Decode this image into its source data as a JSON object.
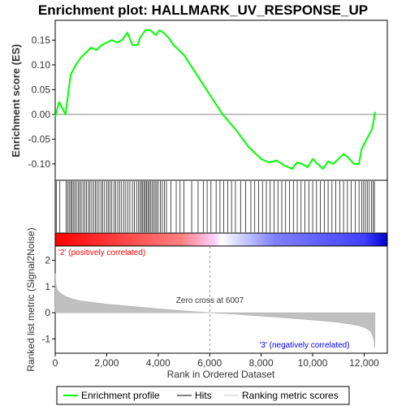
{
  "chart_data": {
    "type": "line",
    "title": "Enrichment plot: HALLMARK_UV_RESPONSE_UP",
    "es_panel": {
      "ylabel": "Enrichment score (ES)",
      "ylim": [
        -0.133,
        0.19
      ],
      "yticks": [
        0.15,
        0.1,
        0.05,
        0.0,
        -0.05,
        -0.1
      ],
      "ytick_labels": [
        "0.15",
        "0.10",
        "0.05",
        "0.00",
        "-0.05",
        "-0.10"
      ],
      "line_color": "#00ff00",
      "x": [
        0,
        150,
        400,
        600,
        800,
        1000,
        1200,
        1400,
        1600,
        1800,
        2000,
        2200,
        2400,
        2600,
        2800,
        3000,
        3200,
        3300,
        3500,
        3700,
        3900,
        4050,
        4200,
        4400,
        4600,
        4800,
        5000,
        5500,
        6000,
        6500,
        7000,
        7500,
        8000,
        8300,
        8600,
        8900,
        9200,
        9400,
        9600,
        9800,
        10000,
        10200,
        10400,
        10600,
        10800,
        11000,
        11200,
        11400,
        11600,
        11800,
        11900,
        12000,
        12100,
        12200,
        12300,
        12380,
        12420
      ],
      "y": [
        -0.005,
        0.025,
        0.0,
        0.08,
        0.1,
        0.115,
        0.125,
        0.135,
        0.13,
        0.14,
        0.145,
        0.15,
        0.145,
        0.15,
        0.165,
        0.14,
        0.14,
        0.155,
        0.17,
        0.17,
        0.16,
        0.17,
        0.165,
        0.155,
        0.14,
        0.13,
        0.12,
        0.08,
        0.04,
        0.0,
        -0.03,
        -0.065,
        -0.09,
        -0.097,
        -0.093,
        -0.103,
        -0.11,
        -0.097,
        -0.1,
        -0.107,
        -0.09,
        -0.1,
        -0.11,
        -0.095,
        -0.1,
        -0.09,
        -0.08,
        -0.088,
        -0.1,
        -0.1,
        -0.07,
        -0.06,
        -0.05,
        -0.04,
        -0.03,
        -0.01,
        0.005
      ]
    },
    "hits": [
      40,
      180,
      420,
      480,
      540,
      600,
      650,
      700,
      760,
      820,
      890,
      950,
      1010,
      1080,
      1150,
      1210,
      1290,
      1350,
      1420,
      1490,
      1560,
      1630,
      1700,
      1780,
      1850,
      1920,
      2000,
      2060,
      2130,
      2200,
      2280,
      2350,
      2430,
      2500,
      2580,
      2660,
      2740,
      2820,
      2900,
      3000,
      3080,
      3160,
      3240,
      3300,
      3350,
      3400,
      3450,
      3500,
      3550,
      3600,
      3650,
      3700,
      3760,
      3820,
      3880,
      3940,
      4000,
      4080,
      4160,
      4240,
      4320,
      4500,
      4700,
      4850,
      5000,
      5300,
      5550,
      5750,
      5900,
      6050,
      6250,
      6400,
      6550,
      6700,
      6850,
      7000,
      7200,
      7400,
      7600,
      7750,
      7900,
      8050,
      8200,
      8350,
      8500,
      8650,
      8800,
      8950,
      9100,
      9250,
      9400,
      9550,
      9700,
      9850,
      10000,
      10150,
      10300,
      10450,
      10600,
      10750,
      10900,
      11050,
      11200,
      11350,
      11500,
      11650,
      11800,
      11900,
      11980,
      12050,
      12120,
      12200,
      12280,
      12350,
      12400
    ],
    "ranking_panel": {
      "ylabel": "Ranked list metric (Signal2Noise)",
      "ylim": [
        -1.55,
        2.55
      ],
      "yticks": [
        2,
        1,
        0,
        -1
      ],
      "ytick_labels": [
        "2",
        "1",
        "0",
        "-1"
      ],
      "x": [
        0,
        10,
        30,
        60,
        100,
        200,
        400,
        700,
        1000,
        2000,
        3000,
        4000,
        5000,
        6007,
        7000,
        8000,
        9000,
        10000,
        10500,
        11000,
        11500,
        11800,
        12000,
        12150,
        12250,
        12320,
        12380,
        12420
      ],
      "y": [
        1.5,
        1.3,
        1.1,
        0.95,
        0.85,
        0.75,
        0.62,
        0.52,
        0.45,
        0.33,
        0.24,
        0.15,
        0.07,
        0.0,
        -0.06,
        -0.13,
        -0.2,
        -0.28,
        -0.32,
        -0.37,
        -0.44,
        -0.5,
        -0.56,
        -0.64,
        -0.72,
        -0.85,
        -1.05,
        -1.35
      ]
    },
    "xlabel": "Rank in Ordered Dataset",
    "xlim": [
      0,
      12900
    ],
    "xticks": [
      0,
      2000,
      4000,
      6000,
      8000,
      10000,
      12000
    ],
    "xtick_labels": [
      "0",
      "2,000",
      "4,000",
      "6,000",
      "8,000",
      "10,000",
      "12,000"
    ],
    "zero_cross": 6007,
    "n_total": 12420,
    "annotations": {
      "positive": "'2' (positively correlated)",
      "negative": "'3' (negatively correlated)",
      "zero_cross": "Zero cross at 6007"
    },
    "colors": {
      "positive": "#ff0000",
      "neutral": "#ffffff",
      "negative": "#0000ff",
      "positive_text": "#ff0000",
      "negative_text": "#0000ff",
      "zero_text": "#333333"
    },
    "legend": {
      "placement": "bottom",
      "items": [
        {
          "label": "Enrichment profile",
          "color": "#00ff00"
        },
        {
          "label": "Hits",
          "color": "#000000"
        },
        {
          "label": "Ranking metric scores",
          "color": "#cccccc"
        }
      ]
    }
  }
}
